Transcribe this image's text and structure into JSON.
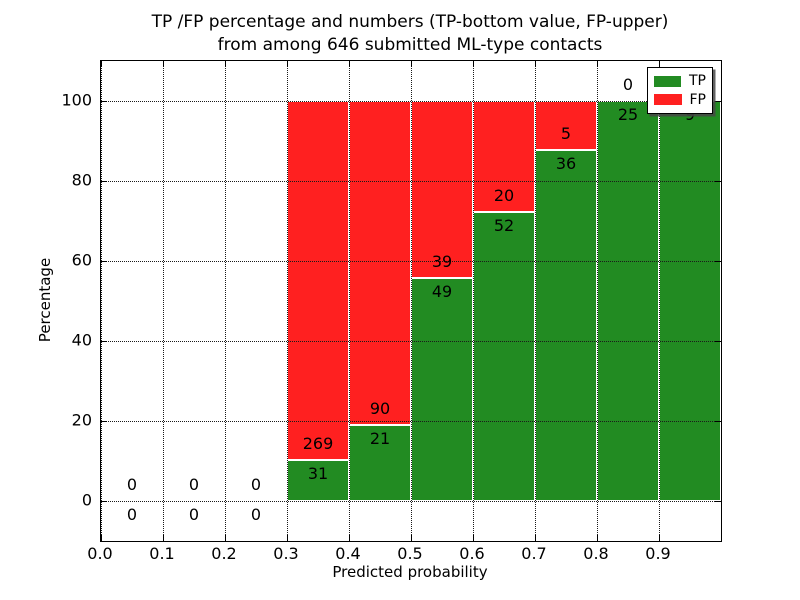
{
  "chart_data": {
    "type": "bar",
    "stacked": true,
    "title": "TP /FP percentage and numbers (TP-bottom value, FP-upper)\nfrom among 646 submitted ML-type contacts",
    "title_line1": "TP /FP percentage and numbers (TP-bottom value, FP-upper)",
    "title_line2": "from among 646 submitted ML-type contacts",
    "xlabel": "Predicted probability",
    "ylabel": "Percentage",
    "total_submitted": 646,
    "bin_edges": [
      0.0,
      0.1,
      0.2,
      0.3,
      0.4,
      0.5,
      0.6,
      0.7,
      0.8,
      0.9,
      1.0
    ],
    "series": [
      {
        "name": "TP",
        "color": "#228B22",
        "values": [
          0,
          0,
          0,
          31,
          21,
          49,
          52,
          36,
          25,
          9
        ]
      },
      {
        "name": "FP",
        "color": "#FF2020",
        "values": [
          0,
          0,
          0,
          269,
          90,
          39,
          20,
          5,
          0,
          0
        ]
      }
    ],
    "tp_percent_by_bin": [
      0,
      0,
      0,
      10.3,
      18.9,
      55.7,
      72.2,
      87.8,
      100,
      100
    ],
    "xlim": [
      0.0,
      1.0
    ],
    "ylim": [
      -10,
      110
    ],
    "xtick_values": [
      0.0,
      0.1,
      0.2,
      0.3,
      0.4,
      0.5,
      0.6,
      0.7,
      0.8,
      0.9
    ],
    "xtick_labels": [
      "0.0",
      "0.1",
      "0.2",
      "0.3",
      "0.4",
      "0.5",
      "0.6",
      "0.7",
      "0.8",
      "0.9"
    ],
    "ytick_values": [
      0,
      20,
      40,
      60,
      80,
      100
    ],
    "ytick_labels": [
      "0",
      "20",
      "40",
      "60",
      "80",
      "100"
    ],
    "grid": true,
    "grid_style": "dotted",
    "legend": {
      "position": "upper right",
      "entries": [
        {
          "label": "TP",
          "color": "#228B22"
        },
        {
          "label": "FP",
          "color": "#FF2020"
        }
      ]
    }
  }
}
